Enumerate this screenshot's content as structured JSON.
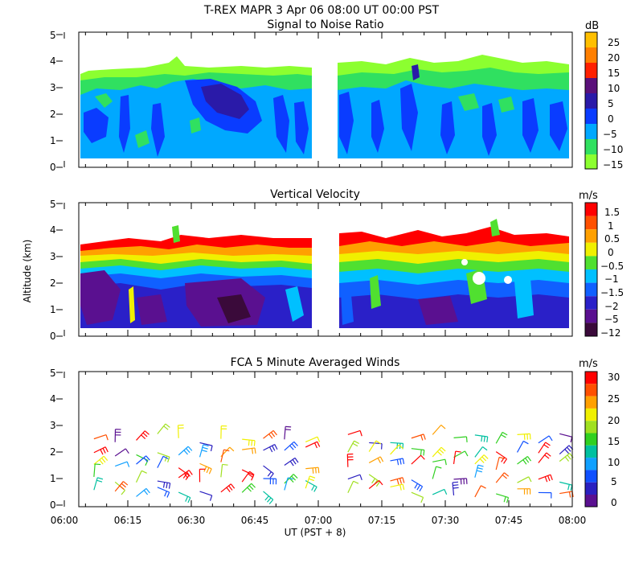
{
  "header": {
    "title": "T-REX   MAPR   3 Apr 06   08:00 UT   00:00   PST"
  },
  "x_axis": {
    "label": "UT   (PST + 8)",
    "ticks": [
      "06:00",
      "06:15",
      "06:30",
      "06:45",
      "07:00",
      "07:15",
      "07:30",
      "07:45",
      "08:00"
    ],
    "range_hours": [
      6.0,
      8.0
    ]
  },
  "y_axis": {
    "label": "Altitude (km)",
    "ticks": [
      "0",
      "1",
      "2",
      "3",
      "4",
      "5"
    ],
    "range": [
      0,
      5
    ]
  },
  "data_gap": {
    "start_hour": 7.0,
    "end_hour": 7.083
  },
  "chart_data": [
    {
      "type": "heatmap",
      "title": "Signal to Noise Ratio",
      "xlabel": "UT (PST + 8)",
      "ylabel": "Altitude (km)",
      "xlim": [
        "06:00",
        "08:00"
      ],
      "ylim": [
        0,
        5
      ],
      "colorbar": {
        "unit": "dB",
        "labels": [
          "25",
          "20",
          "15",
          "10",
          "5",
          "0",
          "−5",
          "−10",
          "−15"
        ],
        "colors": [
          "#ffbf00",
          "#ff7f00",
          "#ff2000",
          "#5a107a",
          "#2a1aa8",
          "#0a3cff",
          "#00a8ff",
          "#30e060",
          "#8cff30"
        ]
      },
      "description_values": {
        "top_of_echo_km": 3.7,
        "dominant_range_dB": [
          -15,
          5
        ]
      }
    },
    {
      "type": "heatmap",
      "title": "Vertical Velocity",
      "xlabel": "UT (PST + 8)",
      "ylabel": "Altitude (km)",
      "xlim": [
        "06:00",
        "08:00"
      ],
      "ylim": [
        0,
        5
      ],
      "colorbar": {
        "unit": "m/s",
        "labels": [
          "1.5",
          "1",
          "0.5",
          "0",
          "−0.5",
          "−1",
          "−1.5",
          "−2",
          "−5",
          "−12"
        ],
        "colors": [
          "#ff0000",
          "#ff5000",
          "#ffa000",
          "#f0f000",
          "#50e030",
          "#00c0ff",
          "#1060ff",
          "#2a20c8",
          "#5a1090",
          "#3a0a3a"
        ]
      },
      "description_values": {
        "top_of_echo_km": 3.7
      }
    },
    {
      "type": "scatter",
      "title": "FCA 5 Minute Averaged Winds",
      "xlabel": "UT (PST + 8)",
      "ylabel": "Altitude (km)",
      "xlim": [
        "06:00",
        "08:00"
      ],
      "ylim": [
        0,
        5
      ],
      "colorbar": {
        "unit": "m/s",
        "labels": [
          "30",
          "25",
          "20",
          "15",
          "10",
          "5",
          "0"
        ],
        "colors": [
          "#ff0000",
          "#ff5000",
          "#ffa000",
          "#f0f000",
          "#a0e020",
          "#30d020",
          "#00c0a0",
          "#10a0ff",
          "#1050ff",
          "#2a20c0",
          "#5a1090"
        ]
      },
      "barbs": {
        "times": [
          "06:07",
          "06:12",
          "06:17",
          "06:22",
          "06:27",
          "06:32",
          "06:37",
          "06:42",
          "06:47",
          "06:52",
          "06:57",
          "07:07",
          "07:12",
          "07:17",
          "07:22",
          "07:27",
          "07:32",
          "07:37",
          "07:42",
          "07:47",
          "07:52",
          "07:57"
        ],
        "altitudes_km": [
          2.5,
          2.0,
          1.5,
          1.0,
          0.5
        ]
      }
    }
  ]
}
